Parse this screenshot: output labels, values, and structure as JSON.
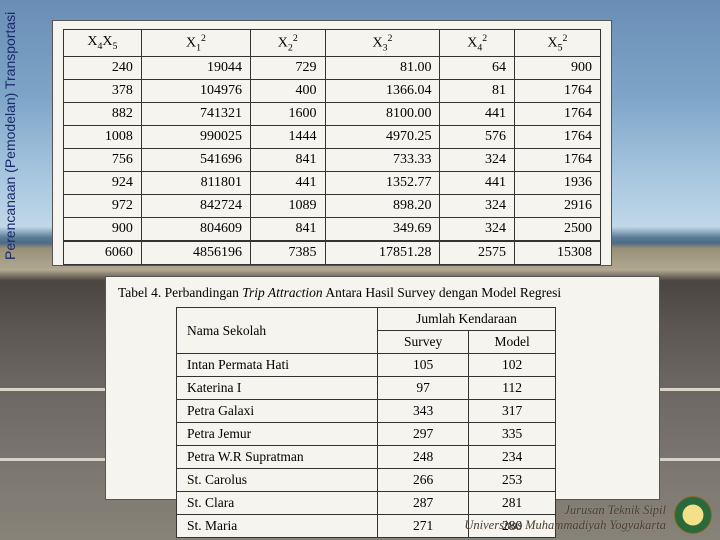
{
  "sidebar_text": "Perencanaan (Pemodelan) Transportasi",
  "table1": {
    "headers_html": [
      "X<sub>4</sub>X<sub>5</sub>",
      "X<sub>1</sub><sup>2</sup>",
      "X<sub>2</sub><sup>2</sup>",
      "X<sub>3</sub><sup>2</sup>",
      "X<sub>4</sub><sup>2</sup>",
      "X<sub>5</sub><sup>2</sup>"
    ],
    "rows": [
      [
        "240",
        "19044",
        "729",
        "81.00",
        "64",
        "900"
      ],
      [
        "378",
        "104976",
        "400",
        "1366.04",
        "81",
        "1764"
      ],
      [
        "882",
        "741321",
        "1600",
        "8100.00",
        "441",
        "1764"
      ],
      [
        "1008",
        "990025",
        "1444",
        "4970.25",
        "576",
        "1764"
      ],
      [
        "756",
        "541696",
        "841",
        "733.33",
        "324",
        "1764"
      ],
      [
        "924",
        "811801",
        "441",
        "1352.77",
        "441",
        "1936"
      ],
      [
        "972",
        "842724",
        "1089",
        "898.20",
        "324",
        "2916"
      ],
      [
        "900",
        "804609",
        "841",
        "349.69",
        "324",
        "2500"
      ]
    ],
    "sum": [
      "6060",
      "4856196",
      "7385",
      "17851.28",
      "2575",
      "15308"
    ]
  },
  "table2": {
    "title_html": "Tabel 4. Perbandingan <i>Trip Attraction</i> Antara Hasil Survey dengan Model Regresi",
    "col_school": "Nama Sekolah",
    "col_group": "Jumlah Kendaraan",
    "col_survey": "Survey",
    "col_model": "Model",
    "rows": [
      {
        "name": "Intan Permata Hati",
        "survey": "105",
        "model": "102"
      },
      {
        "name": "Katerina I",
        "survey": "97",
        "model": "112"
      },
      {
        "name": "Petra Galaxi",
        "survey": "343",
        "model": "317"
      },
      {
        "name": "Petra Jemur",
        "survey": "297",
        "model": "335"
      },
      {
        "name": "Petra W.R Supratman",
        "survey": "248",
        "model": "234"
      },
      {
        "name": "St. Carolus",
        "survey": "266",
        "model": "253"
      },
      {
        "name": "St. Clara",
        "survey": "287",
        "model": "281"
      },
      {
        "name": "St. Maria",
        "survey": "271",
        "model": "280"
      }
    ]
  },
  "footer": {
    "line1": "Jurusan Teknik Sipil",
    "line2": "Universitas Muhammadiyah Yogyakarta"
  }
}
